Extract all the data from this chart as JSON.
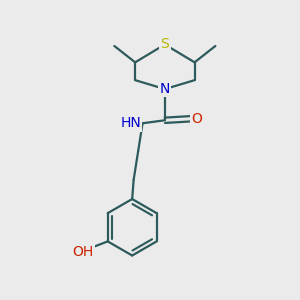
{
  "bg_color": "#ebebeb",
  "bond_color": "#2d5a5a",
  "S_color": "#b8b800",
  "N_color": "#0000cc",
  "O_color": "#cc2200",
  "line_width": 1.6,
  "font_size": 10,
  "fig_w": 3.0,
  "fig_h": 3.0,
  "dpi": 100,
  "xlim": [
    0,
    10
  ],
  "ylim": [
    0,
    10
  ]
}
